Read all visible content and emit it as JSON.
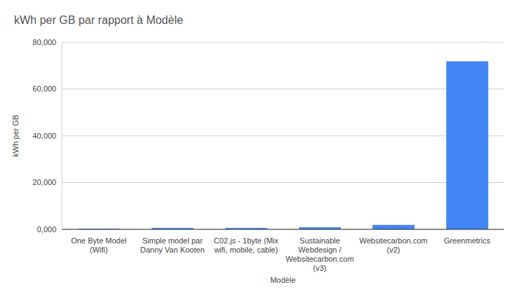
{
  "chart_data": {
    "type": "bar",
    "title": "kWh per GB par rapport à Modèle",
    "x_label": "Modèle",
    "y_label": "kWh per GB",
    "categories": [
      "One Byte Model (Wifi)",
      "Simple model par Danny Van Kooten",
      "C02.js - 1byte (Mix wifi, mobile, cable)",
      "Sustainable Webdesign / Websitecarbon.com (v3)",
      "Websitecarbon.com (v2)",
      "Greenmetrics"
    ],
    "values": [
      0.2,
      0.5,
      0.5,
      0.81,
      1.81,
      71.7
    ],
    "color": "#4285f4",
    "ylim": [
      0,
      80
    ],
    "yticks": [
      {
        "value": 0,
        "label": "0,000"
      },
      {
        "value": 20,
        "label": "20,000"
      },
      {
        "value": 40,
        "label": "40,000"
      },
      {
        "value": 60,
        "label": "60,000"
      },
      {
        "value": 80,
        "label": "80,000"
      }
    ],
    "grid": true
  }
}
